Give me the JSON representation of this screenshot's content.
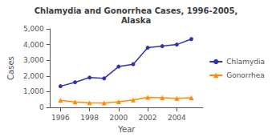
{
  "chart_data": {
    "type": "line",
    "title": "Chlamydia and Gonorrhea Cases, 1996-2005,\nAlaska",
    "xlabel": "Year",
    "ylabel": "Cases",
    "x": [
      1996,
      1997,
      1998,
      1999,
      2000,
      2001,
      2002,
      2003,
      2004,
      2005
    ],
    "series": [
      {
        "name": "Chlamydia",
        "color": "#3333aa",
        "marker": "circle",
        "values": [
          1350,
          1600,
          1900,
          1850,
          2600,
          2750,
          3800,
          3900,
          4000,
          4350
        ]
      },
      {
        "name": "Gonorrhea",
        "color": "#ff8c00",
        "marker": "triangle",
        "values": [
          450,
          350,
          300,
          280,
          360,
          480,
          640,
          620,
          580,
          620
        ]
      }
    ],
    "xlim": [
      1995.3,
      2005.8
    ],
    "xticks": [
      1996,
      1998,
      2000,
      2002,
      2004
    ],
    "ylim": [
      0,
      5000
    ],
    "yticks": [
      0,
      {
        "value": 1000,
        "label": "1,000"
      },
      {
        "value": 2000,
        "label": "2,000"
      },
      {
        "value": 3000,
        "label": "3,000"
      },
      {
        "value": 4000,
        "label": "4,000"
      },
      {
        "value": 5000,
        "label": "5,000"
      }
    ],
    "grid": false,
    "legend": "right"
  }
}
